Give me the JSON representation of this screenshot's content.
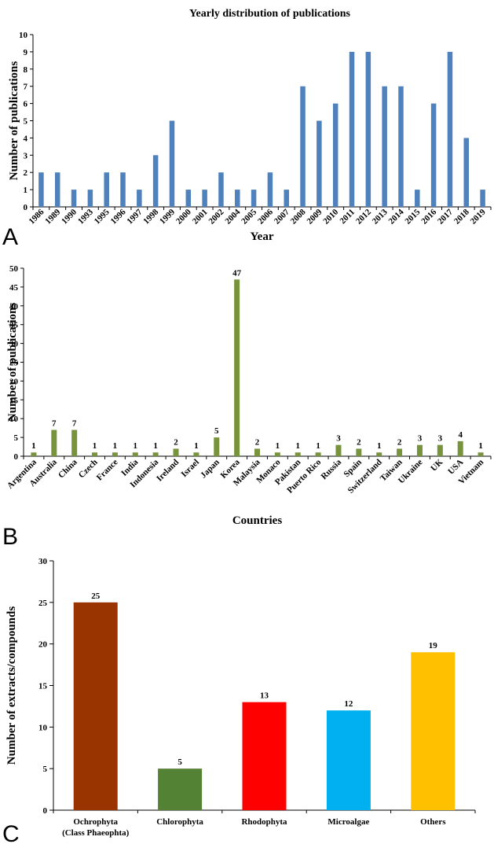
{
  "panels": [
    {
      "letter": "A",
      "chart_data": {
        "type": "bar",
        "title": "Yearly distribution of publications",
        "xlabel": "Year",
        "ylabel": "Number of publications",
        "ylim": [
          0,
          10
        ],
        "yticks": [
          0,
          1,
          2,
          3,
          4,
          5,
          6,
          7,
          8,
          9,
          10
        ],
        "grid": false,
        "bar_color": "#4f81bd",
        "show_value_labels": false,
        "categories": [
          "1986",
          "1989",
          "1990",
          "1993",
          "1995",
          "1996",
          "1997",
          "1998",
          "1999",
          "2000",
          "2001",
          "2002",
          "2004",
          "2005",
          "2006",
          "2007",
          "2008",
          "2009",
          "2010",
          "2011",
          "2012",
          "2013",
          "2014",
          "2015",
          "2016",
          "2017",
          "2018",
          "2019"
        ],
        "values": [
          2,
          2,
          1,
          1,
          2,
          2,
          1,
          3,
          5,
          1,
          1,
          2,
          1,
          1,
          2,
          1,
          7,
          5,
          6,
          9,
          9,
          7,
          7,
          1,
          6,
          9,
          4,
          1
        ]
      }
    },
    {
      "letter": "B",
      "chart_data": {
        "type": "bar",
        "title": "",
        "xlabel": "Countries",
        "ylabel": "Number of publications",
        "ylim": [
          0,
          50
        ],
        "yticks": [
          0,
          5,
          10,
          15,
          20,
          25,
          30,
          35,
          40,
          45,
          50
        ],
        "grid": false,
        "bar_color": "#77933c",
        "show_value_labels": true,
        "categories": [
          "Argentina",
          "Australia",
          "China",
          "Czech",
          "France",
          "India",
          "Indonesia",
          "Ireland",
          "Israel",
          "Japan",
          "Korea",
          "Malaysia",
          "Monaco",
          "Pakistan",
          "Puerto Rico",
          "Russia",
          "Spain",
          "Switzerland",
          "Taiwan",
          "Ukraine",
          "UK",
          "USA",
          "Vietnam"
        ],
        "values": [
          1,
          7,
          7,
          1,
          1,
          1,
          1,
          2,
          1,
          5,
          47,
          2,
          1,
          1,
          1,
          3,
          2,
          1,
          2,
          3,
          3,
          4,
          1
        ]
      }
    },
    {
      "letter": "C",
      "chart_data": {
        "type": "bar",
        "title": "",
        "xlabel": "",
        "ylabel": "Number of extracts/compounds",
        "ylim": [
          0,
          30
        ],
        "yticks": [
          0,
          5,
          10,
          15,
          20,
          25,
          30
        ],
        "grid": false,
        "show_value_labels": true,
        "categories": [
          "Ochrophyta",
          "Chlorophyta",
          "Rhodophyta",
          "Microalgae",
          "Others"
        ],
        "category_sublabels": [
          "(Class Phaeophta)",
          "",
          "",
          "",
          ""
        ],
        "values": [
          25,
          5,
          13,
          12,
          19
        ],
        "colors": [
          "#993300",
          "#548235",
          "#ff0000",
          "#00b0f0",
          "#ffc000"
        ]
      }
    }
  ]
}
